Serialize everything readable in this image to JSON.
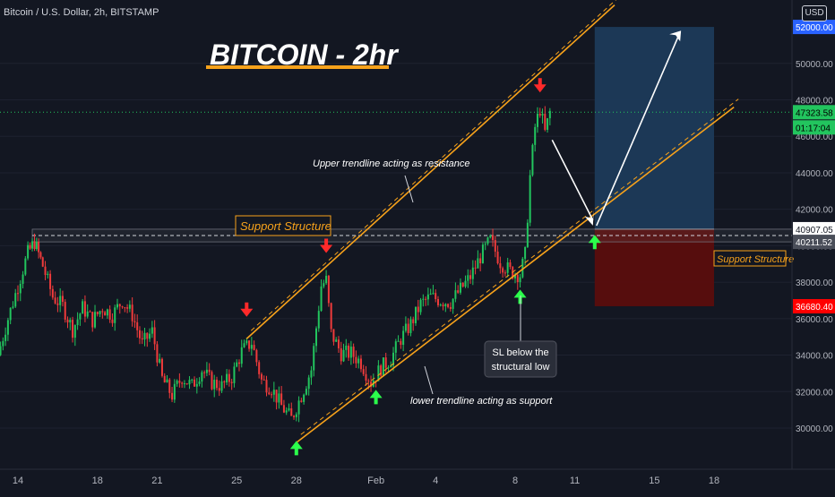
{
  "header": {
    "symbol": "Bitcoin / U.S. Dollar, 2h, BITSTAMP",
    "currency": "USD"
  },
  "title": "BITCOIN - 2hr",
  "annotations": {
    "support_structure": "Support Structure",
    "upper_trendline": "Upper trendline acting as resistance",
    "lower_trendline": "lower trendline acting as support",
    "sl_note_line1": "SL below the",
    "sl_note_line2": "structural low"
  },
  "price_tags": {
    "target": "52000.00",
    "current": "47323.58",
    "countdown": "01:17:04",
    "entry": "40907.05",
    "support": "40211.52",
    "stop": "36680.40"
  },
  "colors": {
    "background": "#131722",
    "bull_candle": "#26a69a",
    "bear_candle": "#ef5350",
    "up_candle_green": "#22c55e",
    "down_candle_red": "#ef3b3b",
    "trendline": "#f7a21b",
    "arrow_down": "#ff2a2a",
    "arrow_up": "#2bff4b",
    "target_zone": "#1c3a5a",
    "stop_zone": "#5a0d0d",
    "current_price_line": "#22c55e"
  },
  "chart_data": {
    "type": "candlestick",
    "y_ticks": [
      "30000.00",
      "32000.00",
      "34000.00",
      "36000.00",
      "38000.00",
      "40000.00",
      "42000.00",
      "44000.00",
      "46000.00",
      "48000.00",
      "50000.00"
    ],
    "x_ticks": [
      "14",
      "18",
      "21",
      "25",
      "28",
      "Feb",
      "4",
      "8",
      "11",
      "15",
      "18"
    ],
    "ylim": [
      28600,
      53200
    ],
    "close_path": [
      [
        "Jan 13 00:00",
        34000
      ],
      [
        "Jan 13 12:00",
        36000
      ],
      [
        "Jan 14 00:00",
        37800
      ],
      [
        "Jan 14 12:00",
        39600
      ],
      [
        "Jan 14 20:00",
        40200
      ],
      [
        "Jan 15 06:00",
        38900
      ],
      [
        "Jan 15 18:00",
        37200
      ],
      [
        "Jan 16 06:00",
        36700
      ],
      [
        "Jan 16 18:00",
        35400
      ],
      [
        "Jan 17 06:00",
        36600
      ],
      [
        "Jan 17 18:00",
        35900
      ],
      [
        "Jan 18 06:00",
        36600
      ],
      [
        "Jan 18 18:00",
        36200
      ],
      [
        "Jan 19 06:00",
        37000
      ],
      [
        "Jan 19 18:00",
        36200
      ],
      [
        "Jan 20 06:00",
        34600
      ],
      [
        "Jan 20 18:00",
        35300
      ],
      [
        "Jan 21 06:00",
        32700
      ],
      [
        "Jan 21 18:00",
        31800
      ],
      [
        "Jan 22 06:00",
        32800
      ],
      [
        "Jan 22 18:00",
        32300
      ],
      [
        "Jan 23 06:00",
        33200
      ],
      [
        "Jan 23 18:00",
        32500
      ],
      [
        "Jan 24 06:00",
        32300
      ],
      [
        "Jan 24 18:00",
        32800
      ],
      [
        "Jan 25 06:00",
        34200
      ],
      [
        "Jan 25 18:00",
        34700
      ],
      [
        "Jan 26 06:00",
        32600
      ],
      [
        "Jan 26 18:00",
        32200
      ],
      [
        "Jan 27 06:00",
        31200
      ],
      [
        "Jan 27 18:00",
        30500
      ],
      [
        "Jan 28 06:00",
        31800
      ],
      [
        "Jan 28 18:00",
        33200
      ],
      [
        "Jan 29 06:00",
        37800
      ],
      [
        "Jan 29 12:00",
        38100
      ],
      [
        "Jan 29 18:00",
        35200
      ],
      [
        "Jan 30 06:00",
        34100
      ],
      [
        "Jan 30 18:00",
        34100
      ],
      [
        "Jan 31 06:00",
        33600
      ],
      [
        "Jan 31 18:00",
        32500
      ],
      [
        "Feb 1 06:00",
        33300
      ],
      [
        "Feb 1 18:00",
        33800
      ],
      [
        "Feb 2 06:00",
        34900
      ],
      [
        "Feb 2 18:00",
        35700
      ],
      [
        "Feb 3 06:00",
        36800
      ],
      [
        "Feb 3 18:00",
        37200
      ],
      [
        "Feb 4 06:00",
        37000
      ],
      [
        "Feb 4 18:00",
        36900
      ],
      [
        "Feb 5 06:00",
        37600
      ],
      [
        "Feb 5 18:00",
        38300
      ],
      [
        "Feb 6 06:00",
        39400
      ],
      [
        "Feb 6 18:00",
        40300
      ],
      [
        "Feb 7 06:00",
        39100
      ],
      [
        "Feb 7 18:00",
        38600
      ],
      [
        "Feb 8 06:00",
        38400
      ],
      [
        "Feb 8 12:00",
        39500
      ],
      [
        "Feb 8 18:00",
        43800
      ],
      [
        "Feb 9 00:00",
        46500
      ],
      [
        "Feb 9 06:00",
        47500
      ],
      [
        "Feb 9 12:00",
        46200
      ],
      [
        "Feb 9 18:00",
        47323.58
      ]
    ],
    "trendlines": [
      {
        "name": "Upper trendline acting as resistance",
        "from": [
          "Jan 25 12:00",
          34900
        ],
        "to": [
          "Feb 13",
          53200
        ]
      },
      {
        "name": "lower trendline acting as support",
        "from": [
          "Jan 28",
          29200
        ],
        "to": [
          "Feb 19",
          47600
        ]
      }
    ],
    "position": {
      "entry": 40907.05,
      "stop": 36680.4,
      "target": 52000,
      "from": "Feb 12",
      "to": "Feb 18"
    },
    "support_zone": [
      40211.52,
      40907.05
    ]
  }
}
